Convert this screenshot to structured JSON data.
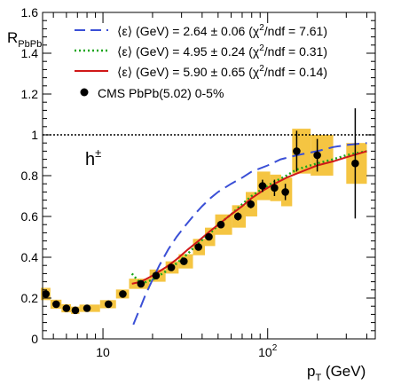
{
  "chart_data": {
    "type": "line",
    "ylabel": "R",
    "ylabel_sub": "PbPb",
    "xlabel": "p",
    "xlabel_sub": "T",
    "xlabel_unit": " (GeV)",
    "xscale": "log",
    "xlim": [
      4.3,
      450
    ],
    "ylim": [
      0,
      1.6
    ],
    "y_ticks": [
      "0",
      "0.2",
      "0.4",
      "0.6",
      "0.8",
      "1",
      "1.2",
      "1.4",
      "1.6"
    ],
    "x_ticks": [
      {
        "value": 10,
        "base": "10",
        "exp": ""
      },
      {
        "value": 100,
        "base": "10",
        "exp": "2"
      }
    ],
    "reference_line": {
      "y": 1,
      "style": "dotted"
    },
    "annotation": {
      "base": "h",
      "sup": "±"
    },
    "legend_position": "top-left",
    "series": [
      {
        "name": "⟨ε⟩ (GeV) = 2.64 ± 0.06  (χ²/ndf = 7.61)",
        "legend": {
          "pre": "⟨ε⟩ (GeV) = 2.64 ± 0.06  (χ",
          "sup": "2",
          "post": "/ndf = 7.61)"
        },
        "color": "#3a4fd6",
        "style": "dashed",
        "x": [
          15.3,
          16,
          17,
          18,
          20,
          22,
          25,
          28,
          32,
          36,
          40,
          45,
          50,
          60,
          70,
          80,
          100,
          120,
          150,
          200,
          250,
          300,
          400
        ],
        "y": [
          0.07,
          0.11,
          0.16,
          0.21,
          0.29,
          0.36,
          0.44,
          0.5,
          0.56,
          0.61,
          0.65,
          0.69,
          0.72,
          0.76,
          0.79,
          0.82,
          0.85,
          0.88,
          0.9,
          0.92,
          0.94,
          0.95,
          0.96
        ]
      },
      {
        "name": "⟨ε⟩ (GeV) = 4.95 ± 0.24  (χ²/ndf = 0.31)",
        "legend": {
          "pre": "⟨ε⟩ (GeV) = 4.95 ± 0.24  (χ",
          "sup": "2",
          "post": "/ndf = 0.31)"
        },
        "color": "#1aa61a",
        "style": "dotted",
        "x": [
          15,
          17,
          20,
          24,
          28,
          33,
          38,
          45,
          52,
          60,
          70,
          80,
          95,
          110,
          130,
          150,
          200,
          250,
          300,
          400
        ],
        "y": [
          0.32,
          0.27,
          0.29,
          0.33,
          0.37,
          0.42,
          0.47,
          0.52,
          0.57,
          0.61,
          0.66,
          0.7,
          0.74,
          0.77,
          0.8,
          0.83,
          0.86,
          0.88,
          0.9,
          0.92
        ]
      },
      {
        "name": "⟨ε⟩ (GeV) = 5.90 ± 0.65  (χ²/ndf = 0.14)",
        "legend": {
          "pre": "⟨ε⟩ (GeV) = 5.90 ± 0.65  (χ",
          "sup": "2",
          "post": "/ndf = 0.14)"
        },
        "color": "#d01818",
        "style": "solid",
        "x": [
          15,
          17,
          20,
          24,
          28,
          33,
          38,
          45,
          52,
          60,
          70,
          80,
          95,
          110,
          130,
          150,
          200,
          250,
          300,
          400
        ],
        "y": [
          0.27,
          0.28,
          0.31,
          0.35,
          0.39,
          0.44,
          0.48,
          0.53,
          0.57,
          0.61,
          0.65,
          0.69,
          0.73,
          0.76,
          0.79,
          0.81,
          0.85,
          0.87,
          0.89,
          0.92
        ]
      }
    ],
    "data_points": {
      "name": "CMS PbPb(5.02) 0-5%",
      "marker_color": "#000000",
      "syst_color": "#f5c542",
      "points": [
        {
          "x": 4.5,
          "xlo": 4.2,
          "xhi": 4.8,
          "y": 0.22,
          "stat": 0.005,
          "syst": 0.03
        },
        {
          "x": 5.2,
          "xlo": 4.8,
          "xhi": 5.6,
          "y": 0.17,
          "stat": 0.005,
          "syst": 0.022
        },
        {
          "x": 6.0,
          "xlo": 5.6,
          "xhi": 6.4,
          "y": 0.15,
          "stat": 0.005,
          "syst": 0.02
        },
        {
          "x": 6.8,
          "xlo": 6.4,
          "xhi": 7.2,
          "y": 0.14,
          "stat": 0.005,
          "syst": 0.018
        },
        {
          "x": 8.0,
          "xlo": 7.2,
          "xhi": 9.6,
          "y": 0.15,
          "stat": 0.005,
          "syst": 0.018
        },
        {
          "x": 10.8,
          "xlo": 9.6,
          "xhi": 12.0,
          "y": 0.17,
          "stat": 0.005,
          "syst": 0.02
        },
        {
          "x": 13.2,
          "xlo": 12.0,
          "xhi": 14.4,
          "y": 0.22,
          "stat": 0.005,
          "syst": 0.022
        },
        {
          "x": 17.0,
          "xlo": 14.4,
          "xhi": 19.2,
          "y": 0.27,
          "stat": 0.005,
          "syst": 0.025
        },
        {
          "x": 21.0,
          "xlo": 19.2,
          "xhi": 24.0,
          "y": 0.31,
          "stat": 0.006,
          "syst": 0.03
        },
        {
          "x": 26.0,
          "xlo": 24.0,
          "xhi": 28.8,
          "y": 0.35,
          "stat": 0.008,
          "syst": 0.03
        },
        {
          "x": 31.0,
          "xlo": 28.8,
          "xhi": 35.2,
          "y": 0.38,
          "stat": 0.01,
          "syst": 0.035
        },
        {
          "x": 38.0,
          "xlo": 35.2,
          "xhi": 41.6,
          "y": 0.45,
          "stat": 0.012,
          "syst": 0.04
        },
        {
          "x": 44.0,
          "xlo": 41.6,
          "xhi": 48.0,
          "y": 0.5,
          "stat": 0.015,
          "syst": 0.045
        },
        {
          "x": 52.0,
          "xlo": 48.0,
          "xhi": 60.8,
          "y": 0.56,
          "stat": 0.018,
          "syst": 0.05
        },
        {
          "x": 66.0,
          "xlo": 60.8,
          "xhi": 73.6,
          "y": 0.6,
          "stat": 0.02,
          "syst": 0.055
        },
        {
          "x": 79.0,
          "xlo": 73.6,
          "xhi": 86.4,
          "y": 0.66,
          "stat": 0.02,
          "syst": 0.06
        },
        {
          "x": 93.0,
          "xlo": 86.4,
          "xhi": 103.6,
          "y": 0.75,
          "stat": 0.03,
          "syst": 0.07
        },
        {
          "x": 110.0,
          "xlo": 103.6,
          "xhi": 120.8,
          "y": 0.74,
          "stat": 0.04,
          "syst": 0.065
        },
        {
          "x": 128.0,
          "xlo": 120.8,
          "xhi": 140.8,
          "y": 0.72,
          "stat": 0.04,
          "syst": 0.07
        },
        {
          "x": 150.0,
          "xlo": 140.8,
          "xhi": 182.4,
          "y": 0.92,
          "stat": 0.1,
          "syst": 0.11
        },
        {
          "x": 200.0,
          "xlo": 182.4,
          "xhi": 250.0,
          "y": 0.9,
          "stat": 0.08,
          "syst": 0.1
        },
        {
          "x": 340.0,
          "xlo": 300.0,
          "xhi": 400.0,
          "y": 0.86,
          "stat": 0.27,
          "syst": 0.1
        }
      ]
    }
  }
}
